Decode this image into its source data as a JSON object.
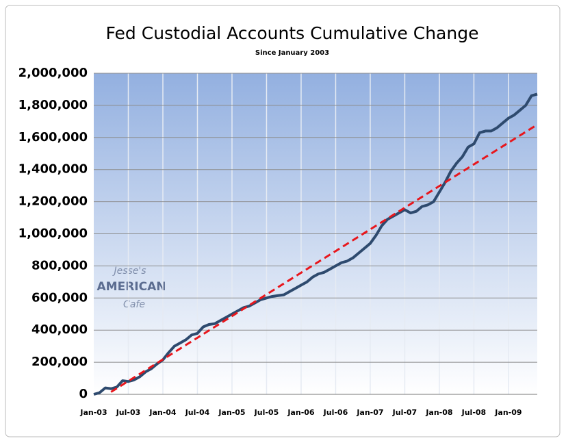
{
  "chart_data": {
    "type": "line",
    "title": "Fed Custodial Accounts  Cumulative Change",
    "subtitle": "Since January 2003",
    "annotations": [
      "Jesse's",
      "AMERICAN",
      "Cafe"
    ],
    "categories": [
      "Jan-03",
      null,
      null,
      null,
      null,
      null,
      "Jul-03",
      null,
      null,
      null,
      null,
      null,
      "Jan-04",
      null,
      null,
      null,
      null,
      null,
      "Jul-04",
      null,
      null,
      null,
      null,
      null,
      "Jan-05",
      null,
      null,
      null,
      null,
      null,
      "Jul-05",
      null,
      null,
      null,
      null,
      null,
      "Jan-06",
      null,
      null,
      null,
      null,
      null,
      "Jul-06",
      null,
      null,
      null,
      null,
      null,
      "Jan-07",
      null,
      null,
      null,
      null,
      null,
      "Jul-07",
      null,
      null,
      null,
      null,
      null,
      "Jan-08",
      null,
      null,
      null,
      null,
      null,
      "Jul-08",
      null,
      null,
      null,
      null,
      null,
      "Jan-09",
      null,
      null,
      null,
      null,
      null
    ],
    "series": [
      {
        "color": "#2e4a6e",
        "style": "solid",
        "values": [
          0,
          10000,
          40000,
          35000,
          45000,
          85000,
          80000,
          90000,
          110000,
          140000,
          160000,
          190000,
          215000,
          260000,
          300000,
          320000,
          340000,
          370000,
          380000,
          420000,
          435000,
          440000,
          460000,
          480000,
          500000,
          520000,
          540000,
          550000,
          570000,
          590000,
          600000,
          610000,
          615000,
          620000,
          640000,
          660000,
          680000,
          700000,
          730000,
          750000,
          760000,
          780000,
          800000,
          820000,
          830000,
          850000,
          880000,
          910000,
          940000,
          990000,
          1050000,
          1090000,
          1110000,
          1130000,
          1150000,
          1130000,
          1140000,
          1170000,
          1180000,
          1200000,
          1260000,
          1320000,
          1390000,
          1440000,
          1480000,
          1540000,
          1560000,
          1630000,
          1640000,
          1640000,
          1660000,
          1690000,
          1720000,
          1740000,
          1770000,
          1800000,
          1860000,
          1870000
        ]
      },
      {
        "color": "#e8161c",
        "style": "dashed",
        "values": [
          null,
          null,
          null,
          15000,
          37500,
          60000,
          82500,
          105000,
          127500,
          150000,
          172500,
          195000,
          217500,
          240000,
          262500,
          285000,
          307500,
          330000,
          352500,
          375000,
          397500,
          420000,
          442500,
          465000,
          487500,
          510000,
          532500,
          555000,
          577500,
          600000,
          622500,
          645000,
          667500,
          690000,
          712500,
          735000,
          757500,
          780000,
          802500,
          825000,
          847500,
          870000,
          892500,
          915000,
          937500,
          960000,
          982500,
          1005000,
          1027500,
          1050000,
          1072500,
          1095000,
          1117500,
          1140000,
          1162500,
          1185000,
          1207500,
          1230000,
          1252500,
          1275000,
          1297500,
          1320000,
          1342500,
          1365000,
          1387500,
          1410000,
          1432500,
          1455000,
          1477500,
          1500000,
          1522500,
          1545000,
          1567500,
          1590000,
          1612500,
          1635000,
          1657500,
          1680000
        ]
      }
    ],
    "ylim": [
      0,
      2000000
    ],
    "yticks": [
      0,
      {
        "value": 200000,
        "label": "200,000"
      },
      {
        "value": 400000,
        "label": "400,000"
      },
      {
        "value": 600000,
        "label": "600,000"
      },
      {
        "value": 800000,
        "label": "800,000"
      },
      {
        "value": 1000000,
        "label": "1,000,000"
      },
      {
        "value": 1200000,
        "label": "1,200,000"
      },
      {
        "value": 1400000,
        "label": "1,400,000"
      },
      {
        "value": 1600000,
        "label": "1,600,000"
      },
      {
        "value": 1800000,
        "label": "1,800,000"
      },
      {
        "value": 2000000,
        "label": "2,000,000"
      }
    ],
    "grid": true
  }
}
